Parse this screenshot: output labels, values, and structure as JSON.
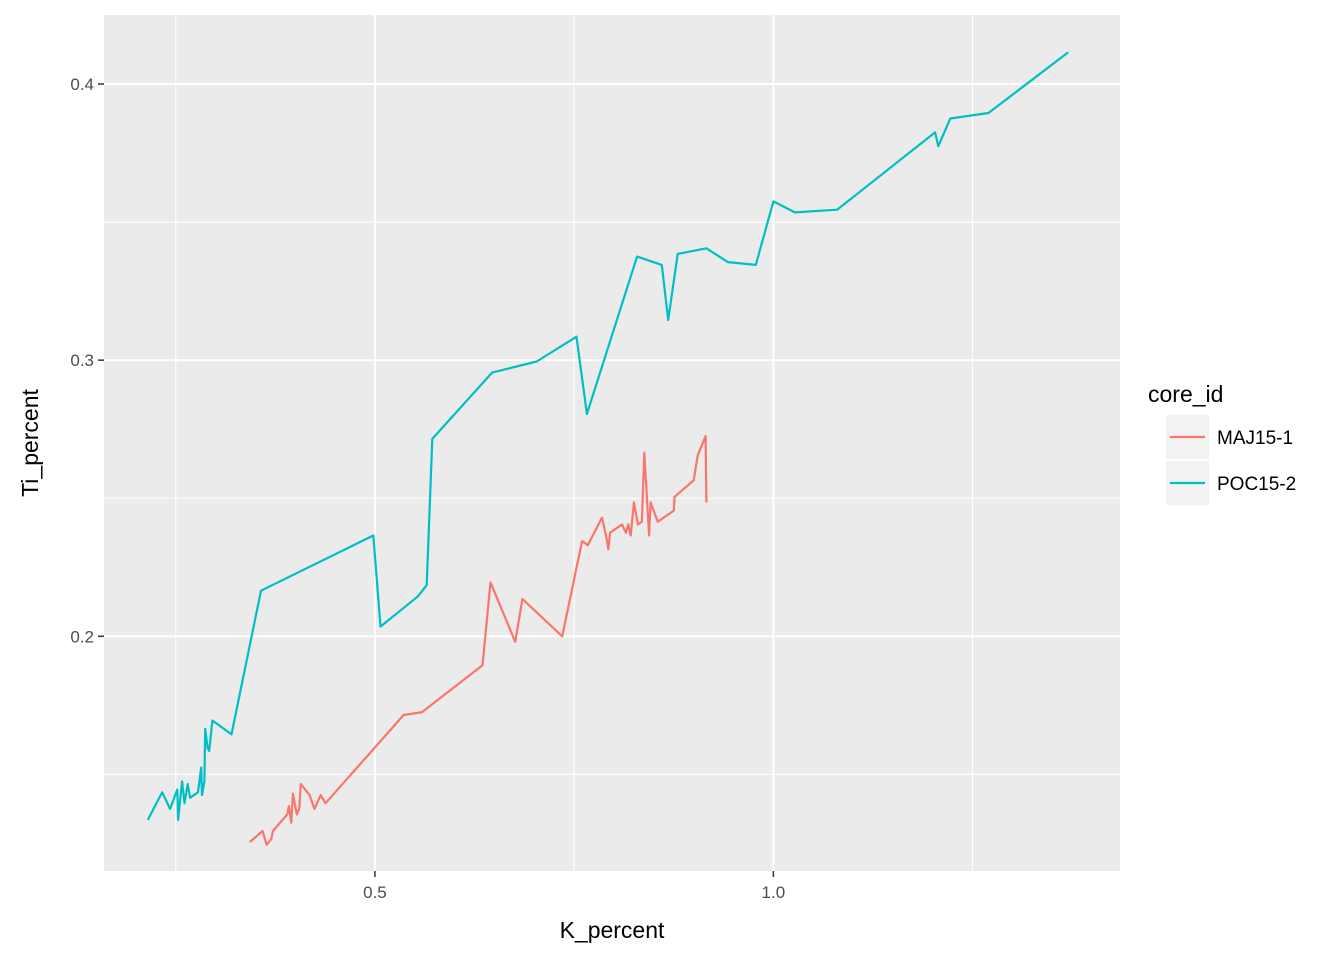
{
  "chart_data": {
    "type": "line",
    "title": "",
    "xlabel": "K_percent",
    "ylabel": "Ti_percent",
    "xlim": [
      0.16,
      1.435
    ],
    "ylim": [
      0.115,
      0.425
    ],
    "x_ticks": [
      {
        "value": 0.5,
        "label": "0.5"
      },
      {
        "value": 1.0,
        "label": "1.0"
      }
    ],
    "y_ticks": [
      {
        "value": 0.2,
        "label": "0.2"
      },
      {
        "value": 0.3,
        "label": "0.3"
      },
      {
        "value": 0.4,
        "label": "0.4"
      }
    ],
    "x_minor": [
      0.25,
      0.75,
      1.25
    ],
    "y_minor": [
      0.15,
      0.25,
      0.35
    ],
    "grid": true,
    "legend": {
      "title": "core_id",
      "position": "right"
    },
    "series": [
      {
        "name": "MAJ15-1",
        "color": "#F8766D",
        "points": [
          [
            0.343,
            0.1255
          ],
          [
            0.359,
            0.1295
          ],
          [
            0.364,
            0.1245
          ],
          [
            0.37,
            0.1265
          ],
          [
            0.372,
            0.1295
          ],
          [
            0.39,
            0.1355
          ],
          [
            0.392,
            0.1385
          ],
          [
            0.395,
            0.1325
          ],
          [
            0.397,
            0.143
          ],
          [
            0.402,
            0.1355
          ],
          [
            0.405,
            0.1375
          ],
          [
            0.407,
            0.1465
          ],
          [
            0.418,
            0.1425
          ],
          [
            0.424,
            0.1375
          ],
          [
            0.432,
            0.1425
          ],
          [
            0.438,
            0.1395
          ],
          [
            0.536,
            0.1715
          ],
          [
            0.559,
            0.1725
          ],
          [
            0.635,
            0.1895
          ],
          [
            0.645,
            0.2195
          ],
          [
            0.676,
            0.198
          ],
          [
            0.685,
            0.2135
          ],
          [
            0.735,
            0.2
          ],
          [
            0.76,
            0.2345
          ],
          [
            0.767,
            0.233
          ],
          [
            0.785,
            0.243
          ],
          [
            0.79,
            0.2365
          ],
          [
            0.793,
            0.2315
          ],
          [
            0.795,
            0.2375
          ],
          [
            0.81,
            0.2405
          ],
          [
            0.815,
            0.2375
          ],
          [
            0.818,
            0.2405
          ],
          [
            0.821,
            0.2365
          ],
          [
            0.825,
            0.2485
          ],
          [
            0.83,
            0.2405
          ],
          [
            0.835,
            0.2415
          ],
          [
            0.838,
            0.2665
          ],
          [
            0.844,
            0.2365
          ],
          [
            0.846,
            0.2485
          ],
          [
            0.855,
            0.2415
          ],
          [
            0.875,
            0.2455
          ],
          [
            0.876,
            0.2505
          ],
          [
            0.9,
            0.2565
          ],
          [
            0.905,
            0.2655
          ],
          [
            0.915,
            0.2725
          ],
          [
            0.916,
            0.2485
          ]
        ]
      },
      {
        "name": "POC15-2",
        "color": "#00BFC4",
        "points": [
          [
            0.215,
            0.1335
          ],
          [
            0.233,
            0.1435
          ],
          [
            0.243,
            0.1375
          ],
          [
            0.252,
            0.1445
          ],
          [
            0.253,
            0.1335
          ],
          [
            0.258,
            0.1475
          ],
          [
            0.261,
            0.1395
          ],
          [
            0.265,
            0.1465
          ],
          [
            0.268,
            0.1415
          ],
          [
            0.278,
            0.1435
          ],
          [
            0.282,
            0.1525
          ],
          [
            0.283,
            0.1425
          ],
          [
            0.286,
            0.1475
          ],
          [
            0.287,
            0.1665
          ],
          [
            0.29,
            0.1595
          ],
          [
            0.292,
            0.1585
          ],
          [
            0.296,
            0.1695
          ],
          [
            0.32,
            0.1645
          ],
          [
            0.357,
            0.2165
          ],
          [
            0.498,
            0.2365
          ],
          [
            0.507,
            0.2035
          ],
          [
            0.554,
            0.2145
          ],
          [
            0.565,
            0.2185
          ],
          [
            0.572,
            0.2715
          ],
          [
            0.647,
            0.2955
          ],
          [
            0.703,
            0.2995
          ],
          [
            0.753,
            0.3085
          ],
          [
            0.766,
            0.2805
          ],
          [
            0.829,
            0.3375
          ],
          [
            0.86,
            0.3345
          ],
          [
            0.868,
            0.3145
          ],
          [
            0.88,
            0.3385
          ],
          [
            0.916,
            0.3405
          ],
          [
            0.943,
            0.3355
          ],
          [
            0.978,
            0.3345
          ],
          [
            1.0,
            0.3575
          ],
          [
            1.027,
            0.3535
          ],
          [
            1.08,
            0.3545
          ],
          [
            1.203,
            0.3825
          ],
          [
            1.207,
            0.3775
          ],
          [
            1.222,
            0.3875
          ],
          [
            1.27,
            0.3895
          ],
          [
            1.37,
            0.4115
          ]
        ]
      }
    ]
  }
}
